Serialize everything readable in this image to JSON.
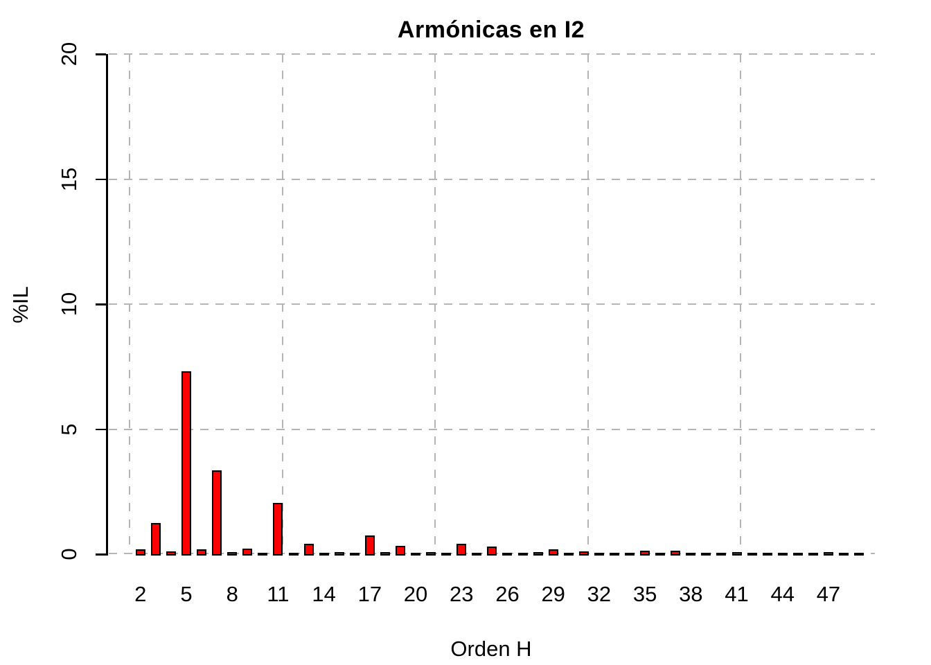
{
  "chart_data": {
    "type": "bar",
    "title": "Armónicas en I2",
    "xlabel": "Orden H",
    "ylabel": "%IL",
    "ylim": [
      0,
      20
    ],
    "yticks": [
      0,
      5,
      10,
      15,
      20
    ],
    "grid": "dashed",
    "grid_color": "#B4B4B4",
    "bar_color": "#FF0000",
    "bar_border_color": "#000000",
    "background_color": "#FFFFFF",
    "categories": [
      2,
      3,
      4,
      5,
      6,
      7,
      8,
      9,
      10,
      11,
      12,
      13,
      14,
      15,
      16,
      17,
      18,
      19,
      20,
      21,
      22,
      23,
      24,
      25,
      26,
      27,
      28,
      29,
      30,
      31,
      32,
      33,
      34,
      35,
      36,
      37,
      38,
      39,
      40,
      41,
      42,
      43,
      44,
      45,
      46,
      47,
      48,
      49
    ],
    "values": [
      0.2,
      1.25,
      0.12,
      7.32,
      0.19,
      3.36,
      0.08,
      0.22,
      0.05,
      2.05,
      0.06,
      0.42,
      0.05,
      0.09,
      0.05,
      0.75,
      0.07,
      0.33,
      0.05,
      0.07,
      0.05,
      0.42,
      0.06,
      0.3,
      0.05,
      0.06,
      0.08,
      0.2,
      0.04,
      0.1,
      0.04,
      0.06,
      0.06,
      0.15,
      0.05,
      0.13,
      0.05,
      0.05,
      0.04,
      0.07,
      0.04,
      0.04,
      0.04,
      0.03,
      0.04,
      0.07,
      0.05,
      0.03
    ],
    "xtick_labels": [
      "2",
      "5",
      "8",
      "11",
      "14",
      "17",
      "20",
      "23",
      "26",
      "29",
      "32",
      "35",
      "38",
      "41",
      "44",
      "47"
    ]
  }
}
